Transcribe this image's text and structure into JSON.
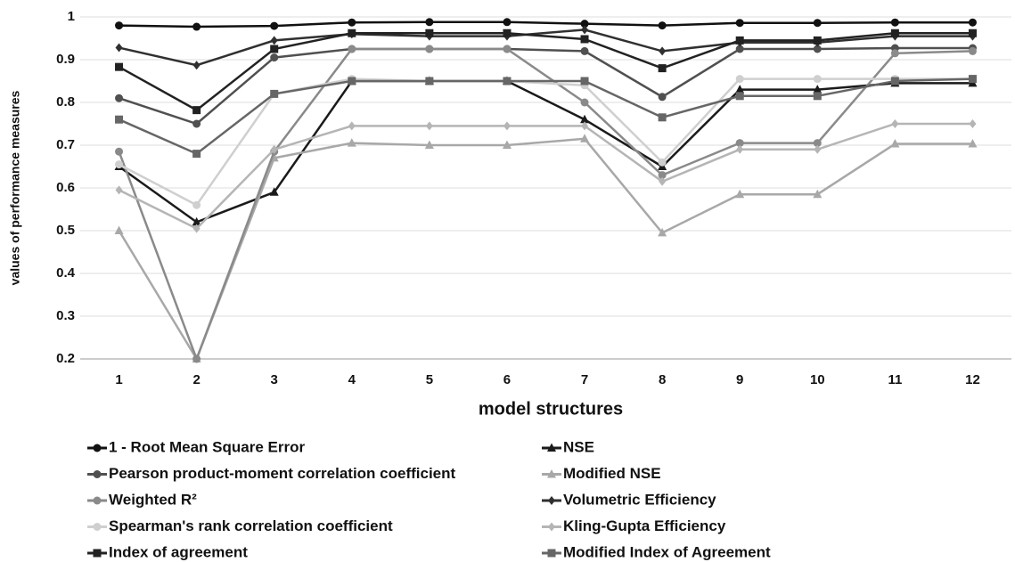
{
  "chart_data": {
    "type": "line",
    "y_label": "values of performance measures",
    "x_label": "model structures",
    "categories": [
      "1",
      "2",
      "3",
      "4",
      "5",
      "6",
      "7",
      "8",
      "9",
      "10",
      "11",
      "12"
    ],
    "ylim": [
      0.2,
      1
    ],
    "yticks": [
      0.2,
      0.3,
      0.4,
      0.5,
      0.6,
      0.7,
      0.8,
      0.9,
      1
    ],
    "grid": true,
    "legend": "bottom",
    "series": [
      {
        "name": "1 - Root Mean Square Error",
        "color": "#111111",
        "marker": "circle",
        "values": [
          0.98,
          0.977,
          0.979,
          0.987,
          0.988,
          0.988,
          0.984,
          0.98,
          0.986,
          0.986,
          0.987,
          0.987
        ]
      },
      {
        "name": "NSE",
        "color": "#1a1a1a",
        "marker": "triangle",
        "values": [
          0.65,
          0.52,
          0.59,
          0.85,
          0.85,
          0.85,
          0.76,
          0.65,
          0.83,
          0.83,
          0.845,
          0.845
        ]
      },
      {
        "name": "Pearson product-moment correlation coefficient",
        "color": "#505050",
        "marker": "circle",
        "values": [
          0.81,
          0.75,
          0.905,
          0.925,
          0.925,
          0.925,
          0.92,
          0.813,
          0.925,
          0.925,
          0.927,
          0.927
        ]
      },
      {
        "name": "Modified NSE",
        "color": "#a8a8a8",
        "marker": "triangle",
        "values": [
          0.5,
          0.2,
          0.67,
          0.705,
          0.7,
          0.7,
          0.715,
          0.495,
          0.585,
          0.585,
          0.703,
          0.703
        ]
      },
      {
        "name": "Weighted R²",
        "color": "#8a8a8a",
        "marker": "circle",
        "values": [
          0.685,
          0.2,
          0.685,
          0.925,
          0.925,
          0.925,
          0.8,
          0.63,
          0.705,
          0.705,
          0.915,
          0.92
        ]
      },
      {
        "name": "Volumetric Efficiency",
        "color": "#303030",
        "marker": "diamond",
        "values": [
          0.928,
          0.887,
          0.945,
          0.96,
          0.955,
          0.955,
          0.97,
          0.92,
          0.94,
          0.94,
          0.955,
          0.955
        ]
      },
      {
        "name": "Spearman's rank correlation coefficient",
        "color": "#cfcfcf",
        "marker": "circle",
        "values": [
          0.655,
          0.56,
          0.82,
          0.855,
          0.85,
          0.85,
          0.84,
          0.66,
          0.855,
          0.855,
          0.855,
          0.855
        ]
      },
      {
        "name": "Kling-Gupta Efficiency",
        "color": "#b5b5b5",
        "marker": "diamond",
        "values": [
          0.595,
          0.505,
          0.69,
          0.745,
          0.745,
          0.745,
          0.745,
          0.615,
          0.69,
          0.69,
          0.75,
          0.75
        ]
      },
      {
        "name": "Index of agreement",
        "color": "#222222",
        "marker": "square",
        "values": [
          0.883,
          0.782,
          0.925,
          0.962,
          0.962,
          0.962,
          0.948,
          0.88,
          0.945,
          0.945,
          0.962,
          0.962
        ]
      },
      {
        "name": "Modified Index of Agreement",
        "color": "#666666",
        "marker": "square",
        "values": [
          0.76,
          0.68,
          0.82,
          0.85,
          0.85,
          0.85,
          0.85,
          0.765,
          0.815,
          0.815,
          0.85,
          0.855
        ]
      }
    ]
  }
}
